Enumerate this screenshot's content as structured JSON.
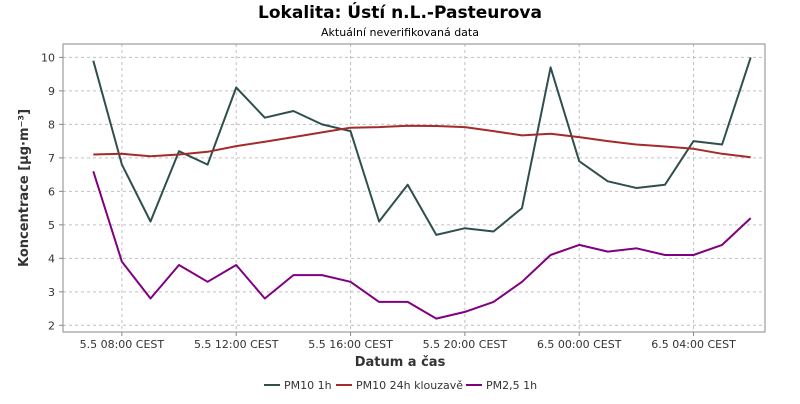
{
  "chart_data": {
    "type": "line",
    "title": "Lokalita: Ústí n.L.-Pasteurova",
    "subtitle": "Aktuální neverifikovaná data",
    "xlabel": "Datum a čas",
    "ylabel": "Koncentrace [µg·m⁻³]",
    "x_ticks": [
      "5.5 08:00 CEST",
      "5.5 12:00 CEST",
      "5.5 16:00 CEST",
      "5.5 20:00 CEST",
      "6.5 00:00 CEST",
      "6.5 04:00 CEST"
    ],
    "x_tick_hours": [
      8,
      12,
      16,
      20,
      24,
      28
    ],
    "x_hours": [
      7,
      8,
      9,
      10,
      11,
      12,
      13,
      14,
      15,
      16,
      17,
      18,
      19,
      20,
      21,
      22,
      23,
      24,
      25,
      26,
      27,
      28,
      29,
      30
    ],
    "xlim": [
      6.5,
      30.5
    ],
    "ylim": [
      1.8,
      10.4
    ],
    "y_ticks": [
      2,
      3,
      4,
      5,
      6,
      7,
      8,
      9,
      10
    ],
    "grid": true,
    "legend_position": "bottom",
    "series": [
      {
        "name": "PM10 1h",
        "color": "#2f4f4f",
        "values": [
          9.9,
          6.8,
          5.1,
          7.2,
          6.8,
          9.1,
          8.2,
          8.4,
          8.0,
          7.8,
          5.1,
          6.2,
          4.7,
          4.9,
          4.8,
          5.5,
          9.7,
          6.9,
          6.3,
          6.1,
          6.2,
          7.5,
          7.4,
          10.0
        ]
      },
      {
        "name": "PM10 24h klouzavě",
        "color": "#a52a2a",
        "values": [
          7.1,
          7.12,
          7.05,
          7.1,
          7.18,
          7.35,
          7.48,
          7.62,
          7.76,
          7.9,
          7.92,
          7.96,
          7.95,
          7.92,
          7.8,
          7.67,
          7.72,
          7.62,
          7.5,
          7.4,
          7.34,
          7.27,
          7.12,
          7.02
        ]
      },
      {
        "name": "PM2,5 1h",
        "color": "#800080",
        "values": [
          6.6,
          3.9,
          2.8,
          3.8,
          3.3,
          3.8,
          2.8,
          3.5,
          3.5,
          3.3,
          2.7,
          2.7,
          2.2,
          2.4,
          2.7,
          3.3,
          4.1,
          4.4,
          4.2,
          4.3,
          4.1,
          4.1,
          4.4,
          5.2
        ]
      }
    ]
  }
}
